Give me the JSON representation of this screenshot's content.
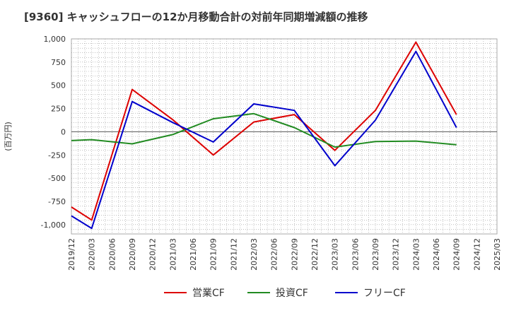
{
  "title": "[9360]  キャッシュフローの12か月移動合計の対前年同期増減額の推移",
  "chart_data": {
    "type": "line",
    "ylabel": "(百万円)",
    "ylim": [
      -1100,
      1000
    ],
    "yticks": [
      1000,
      750,
      500,
      250,
      0,
      -250,
      -500,
      -750,
      -1000
    ],
    "ytick_labels": [
      "1,000",
      "750",
      "500",
      "250",
      "0",
      "-250",
      "-500",
      "-750",
      "-1,000"
    ],
    "x_ticks": [
      "2019/12",
      "2020/03",
      "2020/06",
      "2020/09",
      "2020/12",
      "2021/03",
      "2021/06",
      "2021/09",
      "2021/12",
      "2022/03",
      "2022/06",
      "2022/09",
      "2022/12",
      "2023/03",
      "2023/06",
      "2023/09",
      "2023/12",
      "2024/03",
      "2024/06",
      "2024/09",
      "2024/12",
      "2025/03"
    ],
    "grid": true,
    "legend_position": "bottom",
    "series": [
      {
        "name": "営業CF",
        "color": "#dd0000",
        "x": [
          "2019/12",
          "2020/03",
          "2020/09",
          "2021/03",
          "2021/09",
          "2022/03",
          "2022/09",
          "2023/03",
          "2023/09",
          "2024/03",
          "2024/09"
        ],
        "values": [
          -810,
          -950,
          455,
          130,
          -250,
          105,
          185,
          -200,
          230,
          965,
          185
        ]
      },
      {
        "name": "投資CF",
        "color": "#228b22",
        "x": [
          "2019/12",
          "2020/03",
          "2020/09",
          "2021/03",
          "2021/09",
          "2022/03",
          "2022/09",
          "2023/03",
          "2023/09",
          "2024/03",
          "2024/09"
        ],
        "values": [
          -95,
          -85,
          -130,
          -30,
          140,
          195,
          45,
          -165,
          -105,
          -100,
          -140
        ]
      },
      {
        "name": "フリーCF",
        "color": "#0000cc",
        "x": [
          "2019/12",
          "2020/03",
          "2020/09",
          "2021/03",
          "2021/09",
          "2022/03",
          "2022/09",
          "2023/03",
          "2023/09",
          "2024/03",
          "2024/09"
        ],
        "values": [
          -905,
          -1040,
          325,
          100,
          -110,
          300,
          230,
          -365,
          125,
          865,
          45
        ]
      }
    ]
  }
}
